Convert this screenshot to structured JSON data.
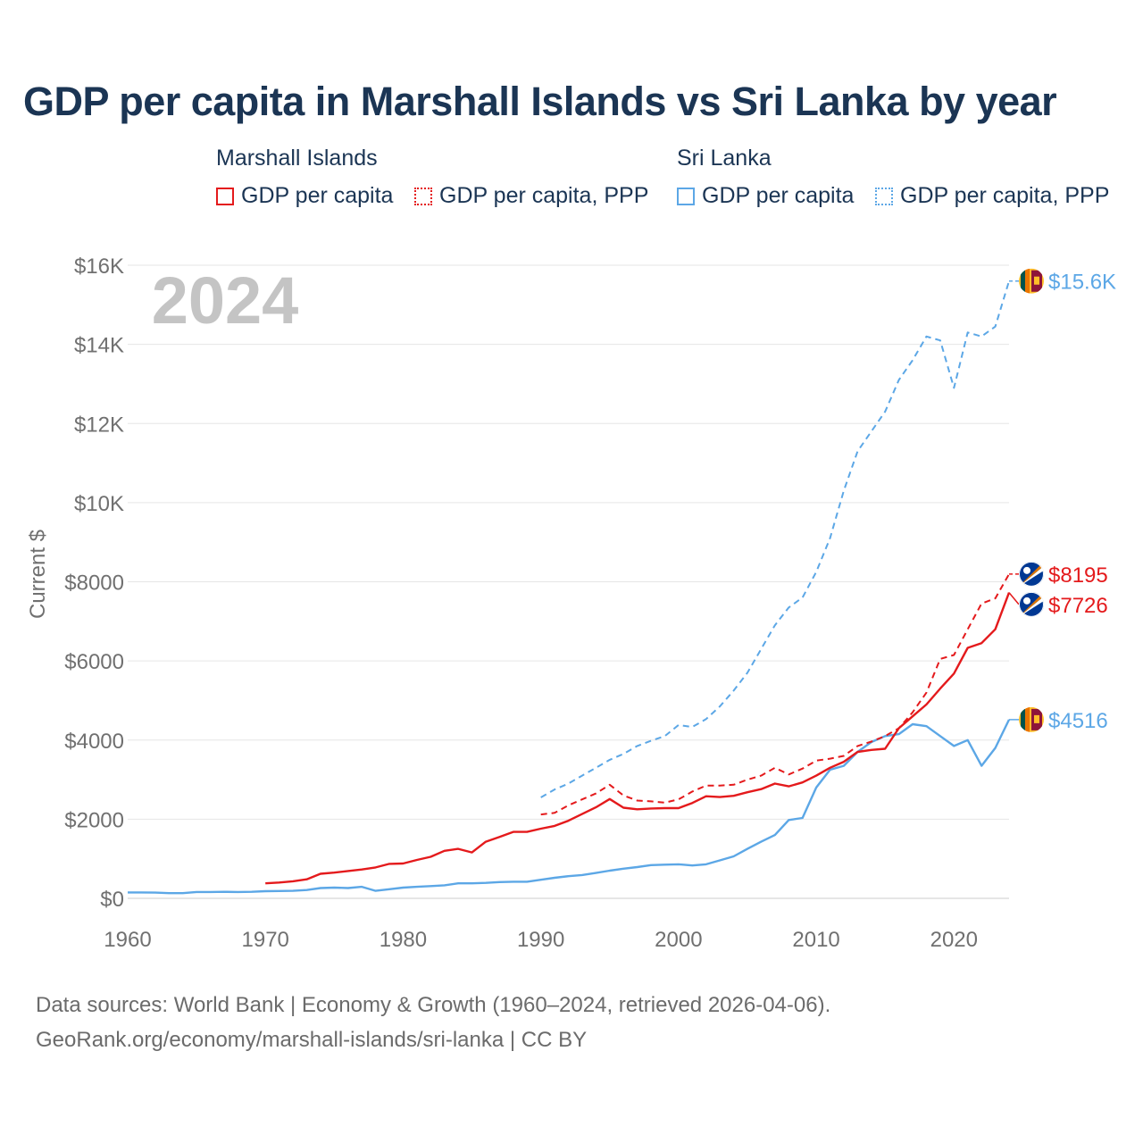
{
  "title": "GDP per capita in Marshall Islands vs Sri Lanka by year",
  "legend": {
    "groups": [
      {
        "name": "Marshall Islands",
        "items": [
          {
            "label": "GDP per capita",
            "color": "#e41a1c",
            "style": "solid"
          },
          {
            "label": "GDP per capita, PPP",
            "color": "#e41a1c",
            "style": "dotted"
          }
        ]
      },
      {
        "name": "Sri Lanka",
        "items": [
          {
            "label": "GDP per capita",
            "color": "#5ca7e6",
            "style": "solid"
          },
          {
            "label": "GDP per capita, PPP",
            "color": "#5ca7e6",
            "style": "dotted"
          }
        ]
      }
    ]
  },
  "footer": {
    "line1": "Data sources: World Bank | Economy & Growth (1960–2024, retrieved 2026-04-06).",
    "line2": "GeoRank.org/economy/marshall-islands/sri-lanka | CC BY"
  },
  "chart_data": {
    "type": "line",
    "year_label": "2024",
    "ylabel": "Current $",
    "xlim": [
      1960,
      2024
    ],
    "ylim": [
      0,
      16000
    ],
    "x_ticks": [
      1960,
      1970,
      1980,
      1990,
      2000,
      2010,
      2020
    ],
    "x_tick_labels": [
      "1960",
      "1970",
      "1980",
      "1990",
      "2000",
      "2010",
      "2020"
    ],
    "y_ticks": [
      0,
      2000,
      4000,
      6000,
      8000,
      10000,
      12000,
      14000,
      16000
    ],
    "y_tick_labels": [
      "$0",
      "$2000",
      "$4000",
      "$6000",
      "$8000",
      "$10K",
      "$12K",
      "$14K",
      "$16K"
    ],
    "grid": true,
    "series": [
      {
        "name": "Sri Lanka, GDP per capita, PPP",
        "country": "Sri Lanka",
        "color": "#5ca7e6",
        "dashed": true,
        "end_label": "$15.6K",
        "x": [
          1990,
          1991,
          1992,
          1993,
          1994,
          1995,
          1996,
          1997,
          1998,
          1999,
          2000,
          2001,
          2002,
          2003,
          2004,
          2005,
          2006,
          2007,
          2008,
          2009,
          2010,
          2011,
          2012,
          2013,
          2014,
          2015,
          2016,
          2017,
          2018,
          2019,
          2020,
          2021,
          2022,
          2023,
          2024
        ],
        "values": [
          2550,
          2750,
          2900,
          3100,
          3300,
          3500,
          3650,
          3850,
          3980,
          4100,
          4380,
          4330,
          4530,
          4850,
          5250,
          5700,
          6300,
          6900,
          7350,
          7600,
          8250,
          9100,
          10300,
          11300,
          11800,
          12300,
          13100,
          13600,
          14200,
          14100,
          12900,
          14300,
          14200,
          14450,
          15600
        ]
      },
      {
        "name": "Sri Lanka, GDP per capita",
        "country": "Sri Lanka",
        "color": "#5ca7e6",
        "dashed": false,
        "end_label": "$4516",
        "x": [
          1960,
          1961,
          1962,
          1963,
          1964,
          1965,
          1966,
          1967,
          1968,
          1969,
          1970,
          1971,
          1972,
          1973,
          1974,
          1975,
          1976,
          1977,
          1978,
          1979,
          1980,
          1981,
          1982,
          1983,
          1984,
          1985,
          1986,
          1987,
          1988,
          1989,
          1990,
          1991,
          1992,
          1993,
          1994,
          1995,
          1996,
          1997,
          1998,
          1999,
          2000,
          2001,
          2002,
          2003,
          2004,
          2005,
          2006,
          2007,
          2008,
          2009,
          2010,
          2011,
          2012,
          2013,
          2014,
          2015,
          2016,
          2017,
          2018,
          2019,
          2020,
          2021,
          2022,
          2023,
          2024
        ],
        "values": [
          150,
          150,
          145,
          130,
          130,
          160,
          160,
          165,
          160,
          165,
          180,
          185,
          190,
          210,
          260,
          270,
          260,
          290,
          190,
          230,
          270,
          290,
          310,
          330,
          380,
          380,
          390,
          410,
          420,
          420,
          470,
          520,
          560,
          590,
          640,
          700,
          750,
          790,
          840,
          850,
          860,
          830,
          860,
          960,
          1060,
          1250,
          1430,
          1600,
          1980,
          2030,
          2800,
          3250,
          3350,
          3700,
          3950,
          4100,
          4150,
          4400,
          4350,
          4100,
          3850,
          4000,
          3350,
          3800,
          4516
        ]
      },
      {
        "name": "Marshall Islands, GDP per capita, PPP",
        "country": "Marshall Islands",
        "color": "#e41a1c",
        "dashed": true,
        "end_label": "$8195",
        "x": [
          1990,
          1991,
          1992,
          1993,
          1994,
          1995,
          1996,
          1997,
          1998,
          1999,
          2000,
          2001,
          2002,
          2003,
          2004,
          2005,
          2006,
          2007,
          2008,
          2009,
          2010,
          2011,
          2012,
          2013,
          2014,
          2015,
          2016,
          2017,
          2018,
          2019,
          2020,
          2021,
          2022,
          2023,
          2024
        ],
        "values": [
          2120,
          2160,
          2350,
          2500,
          2650,
          2870,
          2600,
          2470,
          2450,
          2420,
          2500,
          2700,
          2850,
          2850,
          2870,
          3000,
          3100,
          3300,
          3130,
          3280,
          3480,
          3530,
          3600,
          3850,
          3960,
          4100,
          4300,
          4700,
          5200,
          6050,
          6150,
          6800,
          7450,
          7580,
          8195
        ]
      },
      {
        "name": "Marshall Islands, GDP per capita",
        "country": "Marshall Islands",
        "color": "#e41a1c",
        "dashed": false,
        "end_label": "$7726",
        "x": [
          1970,
          1971,
          1972,
          1973,
          1974,
          1975,
          1976,
          1977,
          1978,
          1979,
          1980,
          1981,
          1982,
          1983,
          1984,
          1985,
          1986,
          1987,
          1988,
          1989,
          1990,
          1991,
          1992,
          1993,
          1994,
          1995,
          1996,
          1997,
          1998,
          1999,
          2000,
          2001,
          2002,
          2003,
          2004,
          2005,
          2006,
          2007,
          2008,
          2009,
          2010,
          2011,
          2012,
          2013,
          2014,
          2015,
          2016,
          2017,
          2018,
          2019,
          2020,
          2021,
          2022,
          2023,
          2024
        ],
        "values": [
          380,
          400,
          430,
          480,
          620,
          650,
          690,
          730,
          780,
          870,
          880,
          970,
          1050,
          1200,
          1250,
          1160,
          1430,
          1550,
          1680,
          1680,
          1760,
          1830,
          1960,
          2130,
          2300,
          2510,
          2290,
          2250,
          2270,
          2280,
          2280,
          2410,
          2580,
          2560,
          2590,
          2680,
          2760,
          2900,
          2830,
          2930,
          3100,
          3300,
          3450,
          3700,
          3750,
          3780,
          4300,
          4600,
          4900,
          5300,
          5680,
          6330,
          6450,
          6800,
          7726
        ]
      }
    ]
  }
}
